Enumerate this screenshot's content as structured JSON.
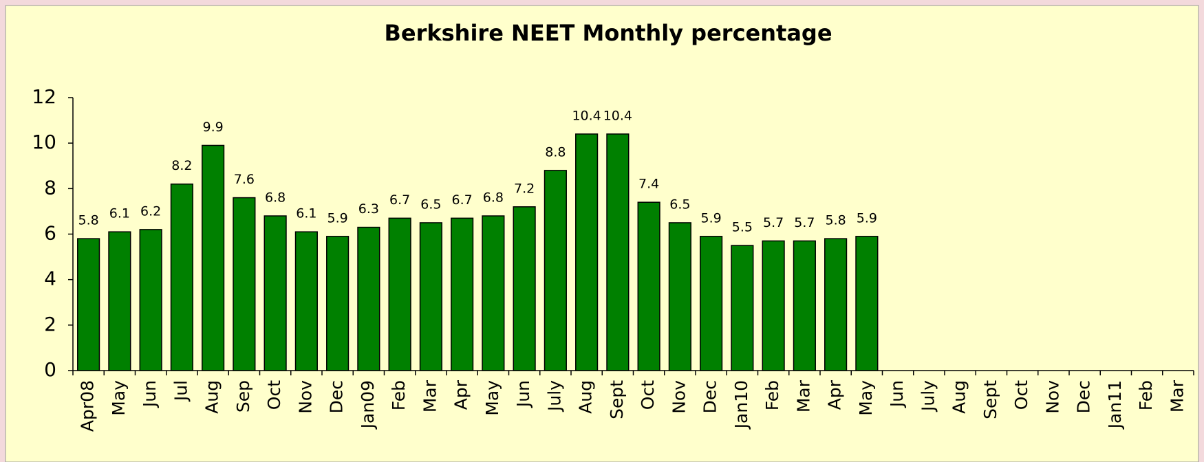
{
  "chart_data": {
    "type": "bar",
    "title": "Berkshire NEET Monthly percentage",
    "categories": [
      "Apr08",
      "May",
      "Jun",
      "Jul",
      "Aug",
      "Sep",
      "Oct",
      "Nov",
      "Dec",
      "Jan09",
      "Feb",
      "Mar",
      "Apr",
      "May",
      "Jun",
      "July",
      "Aug",
      "Sept",
      "Oct",
      "Nov",
      "Dec",
      "Jan10",
      "Feb",
      "Mar",
      "Apr",
      "May",
      "Jun",
      "July",
      "Aug",
      "Sept",
      "Oct",
      "Nov",
      "Dec",
      "Jan11",
      "Feb",
      "Mar"
    ],
    "values": [
      5.8,
      6.1,
      6.2,
      8.2,
      9.9,
      7.6,
      6.8,
      6.1,
      5.9,
      6.3,
      6.7,
      6.5,
      6.7,
      6.8,
      7.2,
      8.8,
      10.4,
      10.4,
      7.4,
      6.5,
      5.9,
      5.5,
      5.7,
      5.7,
      5.8,
      5.9,
      null,
      null,
      null,
      null,
      null,
      null,
      null,
      null,
      null,
      null
    ],
    "color": "#008000",
    "ylim": [
      0,
      12
    ],
    "yticks": [
      0,
      2,
      4,
      6,
      8,
      10,
      12
    ]
  }
}
